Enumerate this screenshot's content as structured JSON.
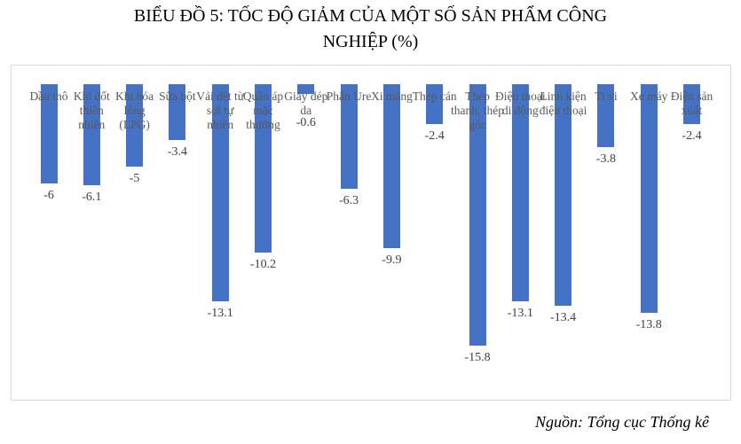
{
  "chart_data": {
    "type": "bar",
    "title": "BIỂU ĐỒ 5: TỐC ĐỘ GIẢM CỦA MỘT SỐ SẢN PHẨM CÔNG NGHIỆP (%)",
    "title_lines": [
      "BIỂU ĐỒ 5: TỐC ĐỘ GIẢM CỦA MỘT SỐ SẢN PHẨM CÔNG",
      "NGHIỆP (%)"
    ],
    "categories": [
      "Dầu thô",
      "Khí đốt thiên nhiên",
      "Khí hóa lỏng (LPG)",
      "Sữa bột",
      "Vải dệt từ sợi tự nhiên",
      "Quần áp mặc thường",
      "Giày dép da",
      "Phân Ure",
      "Xi măng",
      "Thép cán",
      "Thép thanh, thép góc",
      "Điện thoại di động",
      "Linh kiện điện thoại",
      "Ti vi",
      "Xe máy",
      "Điện sản xuất"
    ],
    "values": [
      -6,
      -6.1,
      -5,
      -3.4,
      -13.1,
      -10.2,
      -0.6,
      -6.3,
      -9.9,
      -2.4,
      -15.8,
      -13.1,
      -13.4,
      -3.8,
      -13.8,
      -2.4
    ],
    "value_labels": [
      "-6",
      "-6.1",
      "-5",
      "-3.4",
      "-13.1",
      "-10.2",
      "-0.6",
      "-6.3",
      "-9.9",
      "-2.4",
      "-15.8",
      "-13.1",
      "-13.4",
      "-3.8",
      "-13.8",
      "-2.4"
    ],
    "xlabel": "",
    "ylabel": "",
    "ylim": [
      -16,
      0
    ],
    "grid": false,
    "legend": "none",
    "bar_color": "#4472c4"
  },
  "source": "Nguồn: Tổng cục Thống kê"
}
